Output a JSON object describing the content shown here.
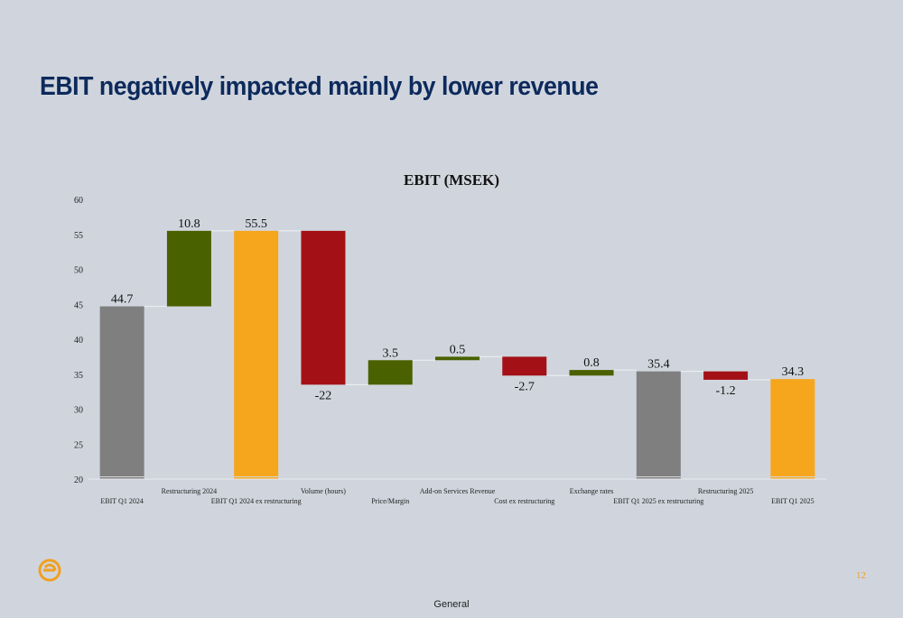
{
  "slide": {
    "title": "EBIT negatively impacted mainly by lower revenue",
    "page_number": "12",
    "footer": "General",
    "logo_icon": "company-logo-icon"
  },
  "colors": {
    "background": "#d0d5dd",
    "title": "#0d2a5c",
    "total_gray": "#7f7f7f",
    "total_orange": "#f6a61c",
    "increase_green": "#4a6100",
    "decrease_red": "#a31116",
    "accent": "#f0a020"
  },
  "chart_data": {
    "type": "waterfall",
    "title": "EBIT (MSEK)",
    "xlabel": "",
    "ylabel": "",
    "ylim": [
      20,
      60
    ],
    "yticks": [
      20,
      25,
      30,
      35,
      40,
      45,
      50,
      55,
      60
    ],
    "grid": false,
    "legend": "none",
    "categories": [
      "EBIT Q1 2024",
      "Restructuring 2024",
      "EBIT Q1 2024 ex restructuring",
      "Volume (hours)",
      "Price/Margin",
      "Add-on Services Revenue",
      "Cost ex restructuring",
      "Exchange rates",
      "EBIT Q1 2025 ex restructuring",
      "Restructuring 2025",
      "EBIT Q1 2025"
    ],
    "values": [
      44.7,
      10.8,
      55.5,
      -22,
      3.5,
      0.5,
      -2.7,
      0.8,
      35.4,
      -1.2,
      34.3
    ],
    "labels": [
      "44.7",
      "10.8",
      "55.5",
      "-22",
      "3.5",
      "0.5",
      "-2.7",
      "0.8",
      "35.4",
      "-1.2",
      "34.3"
    ],
    "kinds": [
      "total",
      "delta",
      "total",
      "delta",
      "delta",
      "delta",
      "delta",
      "delta",
      "total",
      "delta",
      "total"
    ],
    "bar_colors": [
      "#7f7f7f",
      "#4a6100",
      "#f6a61c",
      "#a31116",
      "#4a6100",
      "#4a6100",
      "#a31116",
      "#4a6100",
      "#7f7f7f",
      "#a31116",
      "#f6a61c"
    ]
  }
}
